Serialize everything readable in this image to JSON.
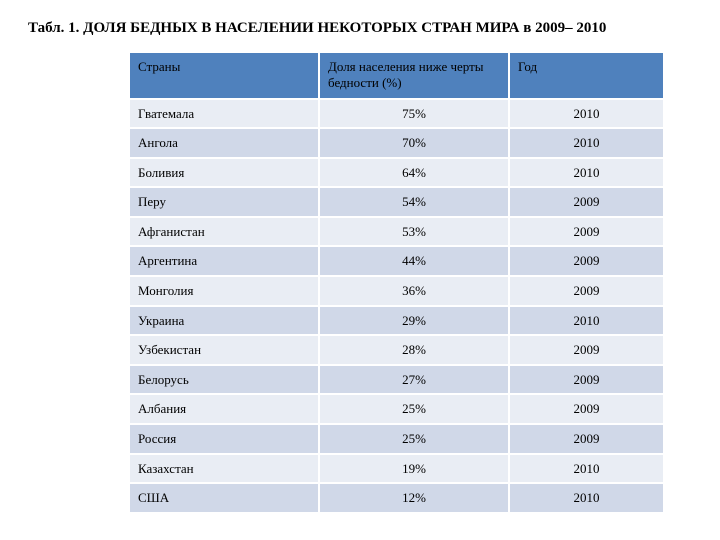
{
  "title": "Табл. 1. ДОЛЯ БЕДНЫХ В НАСЕЛЕНИИ НЕКОТОРЫХ СТРАН МИРА в 2009– 2010",
  "table": {
    "header_bg": "#4f81bd",
    "band_a_bg": "#e9edf4",
    "band_b_bg": "#d0d8e8",
    "title_fontsize": 15,
    "cell_fontsize": 13,
    "columns": {
      "country": "Страны",
      "percent": "Доля населения ниже черты бедности (%)",
      "year": "Год"
    },
    "rows": [
      {
        "country": "Гватемала",
        "percent": "75%",
        "year": "2010"
      },
      {
        "country": "Ангола",
        "percent": "70%",
        "year": "2010"
      },
      {
        "country": "Боливия",
        "percent": "64%",
        "year": "2010"
      },
      {
        "country": "Перу",
        "percent": "54%",
        "year": "2009"
      },
      {
        "country": "Афганистан",
        "percent": "53%",
        "year": "2009"
      },
      {
        "country": "Аргентина",
        "percent": "44%",
        "year": "2009"
      },
      {
        "country": "Монголия",
        "percent": "36%",
        "year": "2009"
      },
      {
        "country": "Украина",
        "percent": "29%",
        "year": "2010"
      },
      {
        "country": "Узбекистан",
        "percent": "28%",
        "year": "2009"
      },
      {
        "country": "Белорусь",
        "percent": "27%",
        "year": "2009"
      },
      {
        "country": "Албания",
        "percent": "25%",
        "year": "2009"
      },
      {
        "country": "Россия",
        "percent": "25%",
        "year": "2009"
      },
      {
        "country": "Казахстан",
        "percent": "19%",
        "year": "2010"
      },
      {
        "country": "США",
        "percent": "12%",
        "year": "2010"
      }
    ]
  }
}
